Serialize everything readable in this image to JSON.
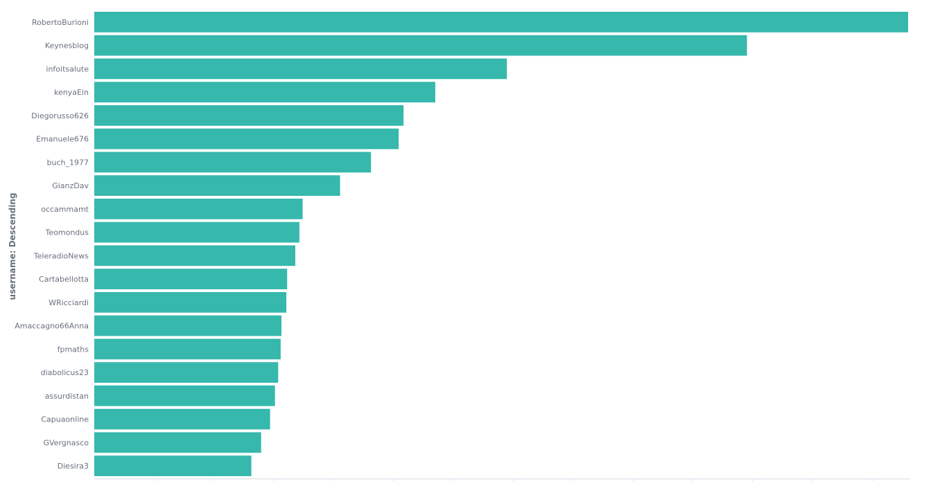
{
  "chart_data": {
    "type": "bar",
    "orientation": "horizontal",
    "ylabel": "username: Descending",
    "xlabel": "",
    "bar_color": "#36b8ad",
    "grid": true,
    "xlim": [
      0,
      100
    ],
    "categories": [
      "RobertoBurioni",
      "Keynesblog",
      "infoitsalute",
      "kenyaEin",
      "Diegorusso626",
      "Emanuele676",
      "buch_1977",
      "GianzDav",
      "occammamt",
      "Teomondus",
      "TeleradioNews",
      "Cartabellotta",
      "WRicciardi",
      "Amaccagno66Anna",
      "fpmaths",
      "diabolicus23",
      "assurdistan",
      "Capuaonline",
      "GVergnasco",
      "Diesira3"
    ],
    "values": [
      100,
      80.2,
      50.7,
      41.9,
      38.0,
      37.4,
      34.0,
      30.2,
      25.6,
      25.2,
      24.7,
      23.7,
      23.6,
      23.0,
      22.9,
      22.6,
      22.2,
      21.6,
      20.5,
      19.3
    ]
  }
}
